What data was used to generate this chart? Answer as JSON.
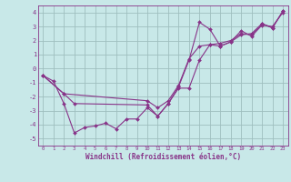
{
  "bg_color": "#c8e8e8",
  "grid_color": "#9fbfbf",
  "line_color": "#883388",
  "marker_color": "#883388",
  "xlabel": "Windchill (Refroidissement éolien,°C)",
  "xlabel_color": "#883388",
  "xlim": [
    -0.5,
    23.5
  ],
  "ylim": [
    -5.5,
    4.5
  ],
  "yticks": [
    -5,
    -4,
    -3,
    -2,
    -1,
    0,
    1,
    2,
    3,
    4
  ],
  "xticks": [
    0,
    1,
    2,
    3,
    4,
    5,
    6,
    7,
    8,
    9,
    10,
    11,
    12,
    13,
    14,
    15,
    16,
    17,
    18,
    19,
    20,
    21,
    22,
    23
  ],
  "lines": [
    {
      "x": [
        0,
        1,
        2,
        3,
        4,
        5,
        6,
        7,
        8,
        9,
        10,
        11,
        12,
        13,
        14,
        15,
        16,
        17,
        18,
        19,
        20,
        21,
        22,
        23
      ],
      "y": [
        -0.5,
        -0.9,
        -2.5,
        -4.6,
        -4.2,
        -4.1,
        -3.9,
        -4.3,
        -3.6,
        -3.6,
        -2.8,
        -3.4,
        -2.5,
        -1.4,
        -1.4,
        0.6,
        1.7,
        1.6,
        1.9,
        2.7,
        2.3,
        3.1,
        3.0,
        4.0
      ]
    },
    {
      "x": [
        0,
        2,
        10,
        11,
        12,
        13,
        14,
        15,
        16,
        17,
        18,
        19,
        20,
        21,
        22,
        23
      ],
      "y": [
        -0.5,
        -1.8,
        -2.3,
        -2.8,
        -2.3,
        -1.2,
        0.7,
        1.6,
        1.7,
        1.8,
        2.0,
        2.5,
        2.4,
        3.2,
        2.9,
        4.1
      ]
    },
    {
      "x": [
        0,
        2,
        3,
        10,
        11,
        12,
        13,
        14,
        15,
        16,
        17,
        18,
        19,
        20,
        21,
        22,
        23
      ],
      "y": [
        -0.5,
        -1.8,
        -2.5,
        -2.6,
        -3.4,
        -2.5,
        -1.3,
        0.6,
        3.3,
        2.8,
        1.6,
        1.9,
        2.4,
        2.5,
        3.2,
        2.9,
        4.1
      ]
    }
  ]
}
